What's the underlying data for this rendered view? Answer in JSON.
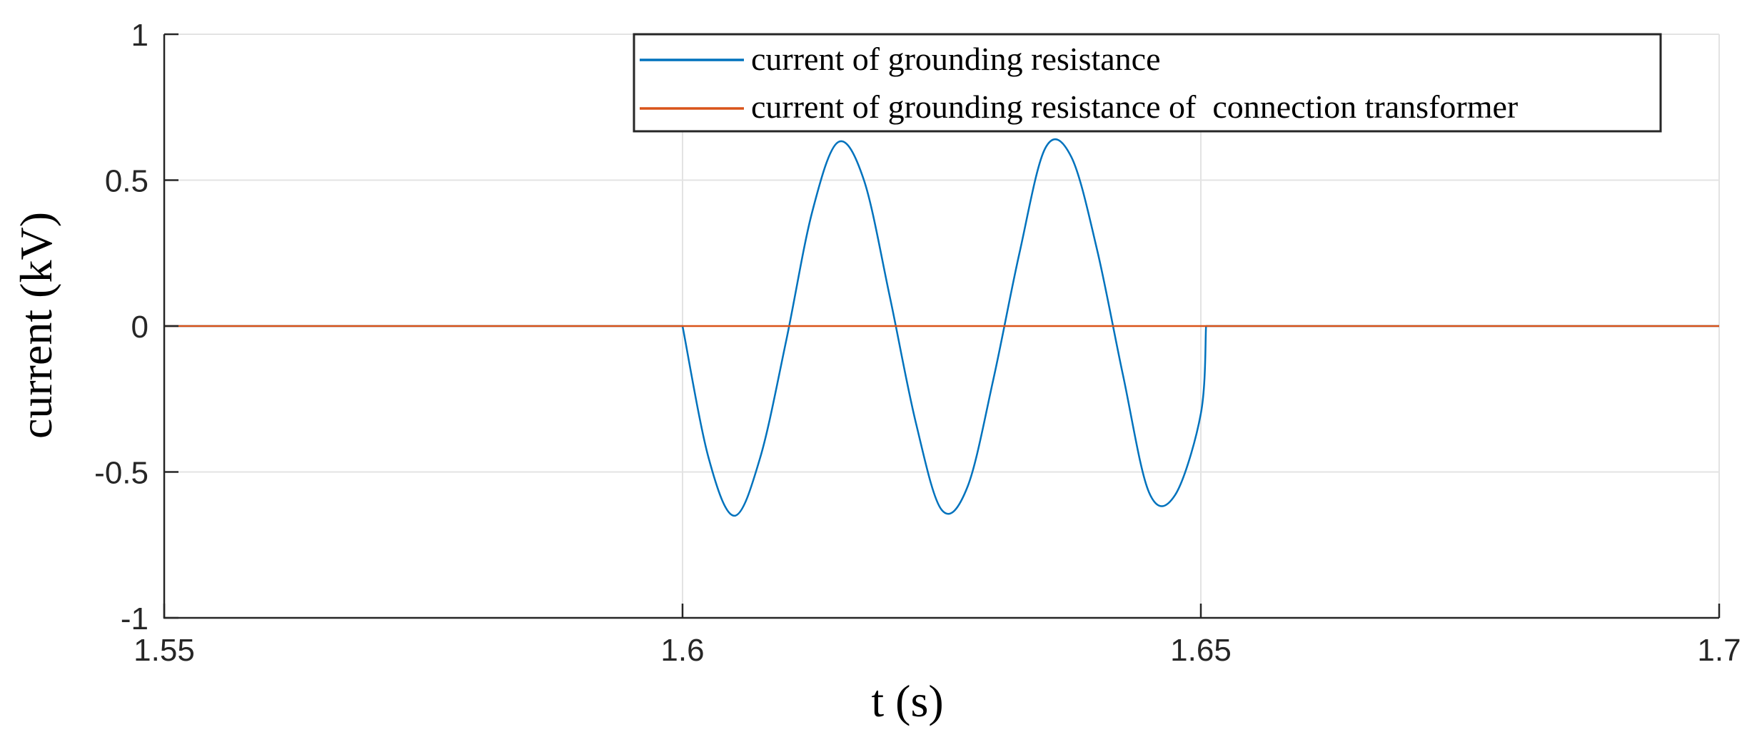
{
  "chart_data": {
    "type": "line",
    "title": "",
    "xlabel": "t (s)",
    "ylabel": "current (kV)",
    "xlim": [
      1.55,
      1.7
    ],
    "ylim": [
      -1,
      1
    ],
    "xticks": [
      1.55,
      1.6,
      1.65,
      1.7
    ],
    "xtick_labels": [
      "1.55",
      "1.6",
      "1.65",
      "1.7"
    ],
    "yticks": [
      -1,
      -0.5,
      0,
      0.5,
      1
    ],
    "ytick_labels": [
      "-1",
      "-0.5",
      "0",
      "0.5",
      "1"
    ],
    "grid": true,
    "legend_position": "top-right",
    "series": [
      {
        "name": "current of grounding resistance",
        "color": "#0072bd",
        "points": [
          [
            1.55,
            0
          ],
          [
            1.6,
            0
          ],
          [
            1.6025,
            -0.45
          ],
          [
            1.605,
            -0.65
          ],
          [
            1.6075,
            -0.45
          ],
          [
            1.61,
            -0.05
          ],
          [
            1.6125,
            0.39
          ],
          [
            1.615,
            0.63
          ],
          [
            1.6175,
            0.5
          ],
          [
            1.62,
            0.1
          ],
          [
            1.6225,
            -0.33
          ],
          [
            1.625,
            -0.63
          ],
          [
            1.6275,
            -0.55
          ],
          [
            1.63,
            -0.18
          ],
          [
            1.6325,
            0.25
          ],
          [
            1.635,
            0.61
          ],
          [
            1.6375,
            0.58
          ],
          [
            1.64,
            0.26
          ],
          [
            1.6425,
            -0.17
          ],
          [
            1.645,
            -0.57
          ],
          [
            1.6475,
            -0.58
          ],
          [
            1.65,
            -0.3
          ],
          [
            1.6505,
            0
          ],
          [
            1.7,
            0
          ]
        ]
      },
      {
        "name": "current of grounding resistance of  connection transformer",
        "color": "#d95319",
        "points": [
          [
            1.55,
            0
          ],
          [
            1.7,
            0
          ]
        ]
      }
    ]
  }
}
